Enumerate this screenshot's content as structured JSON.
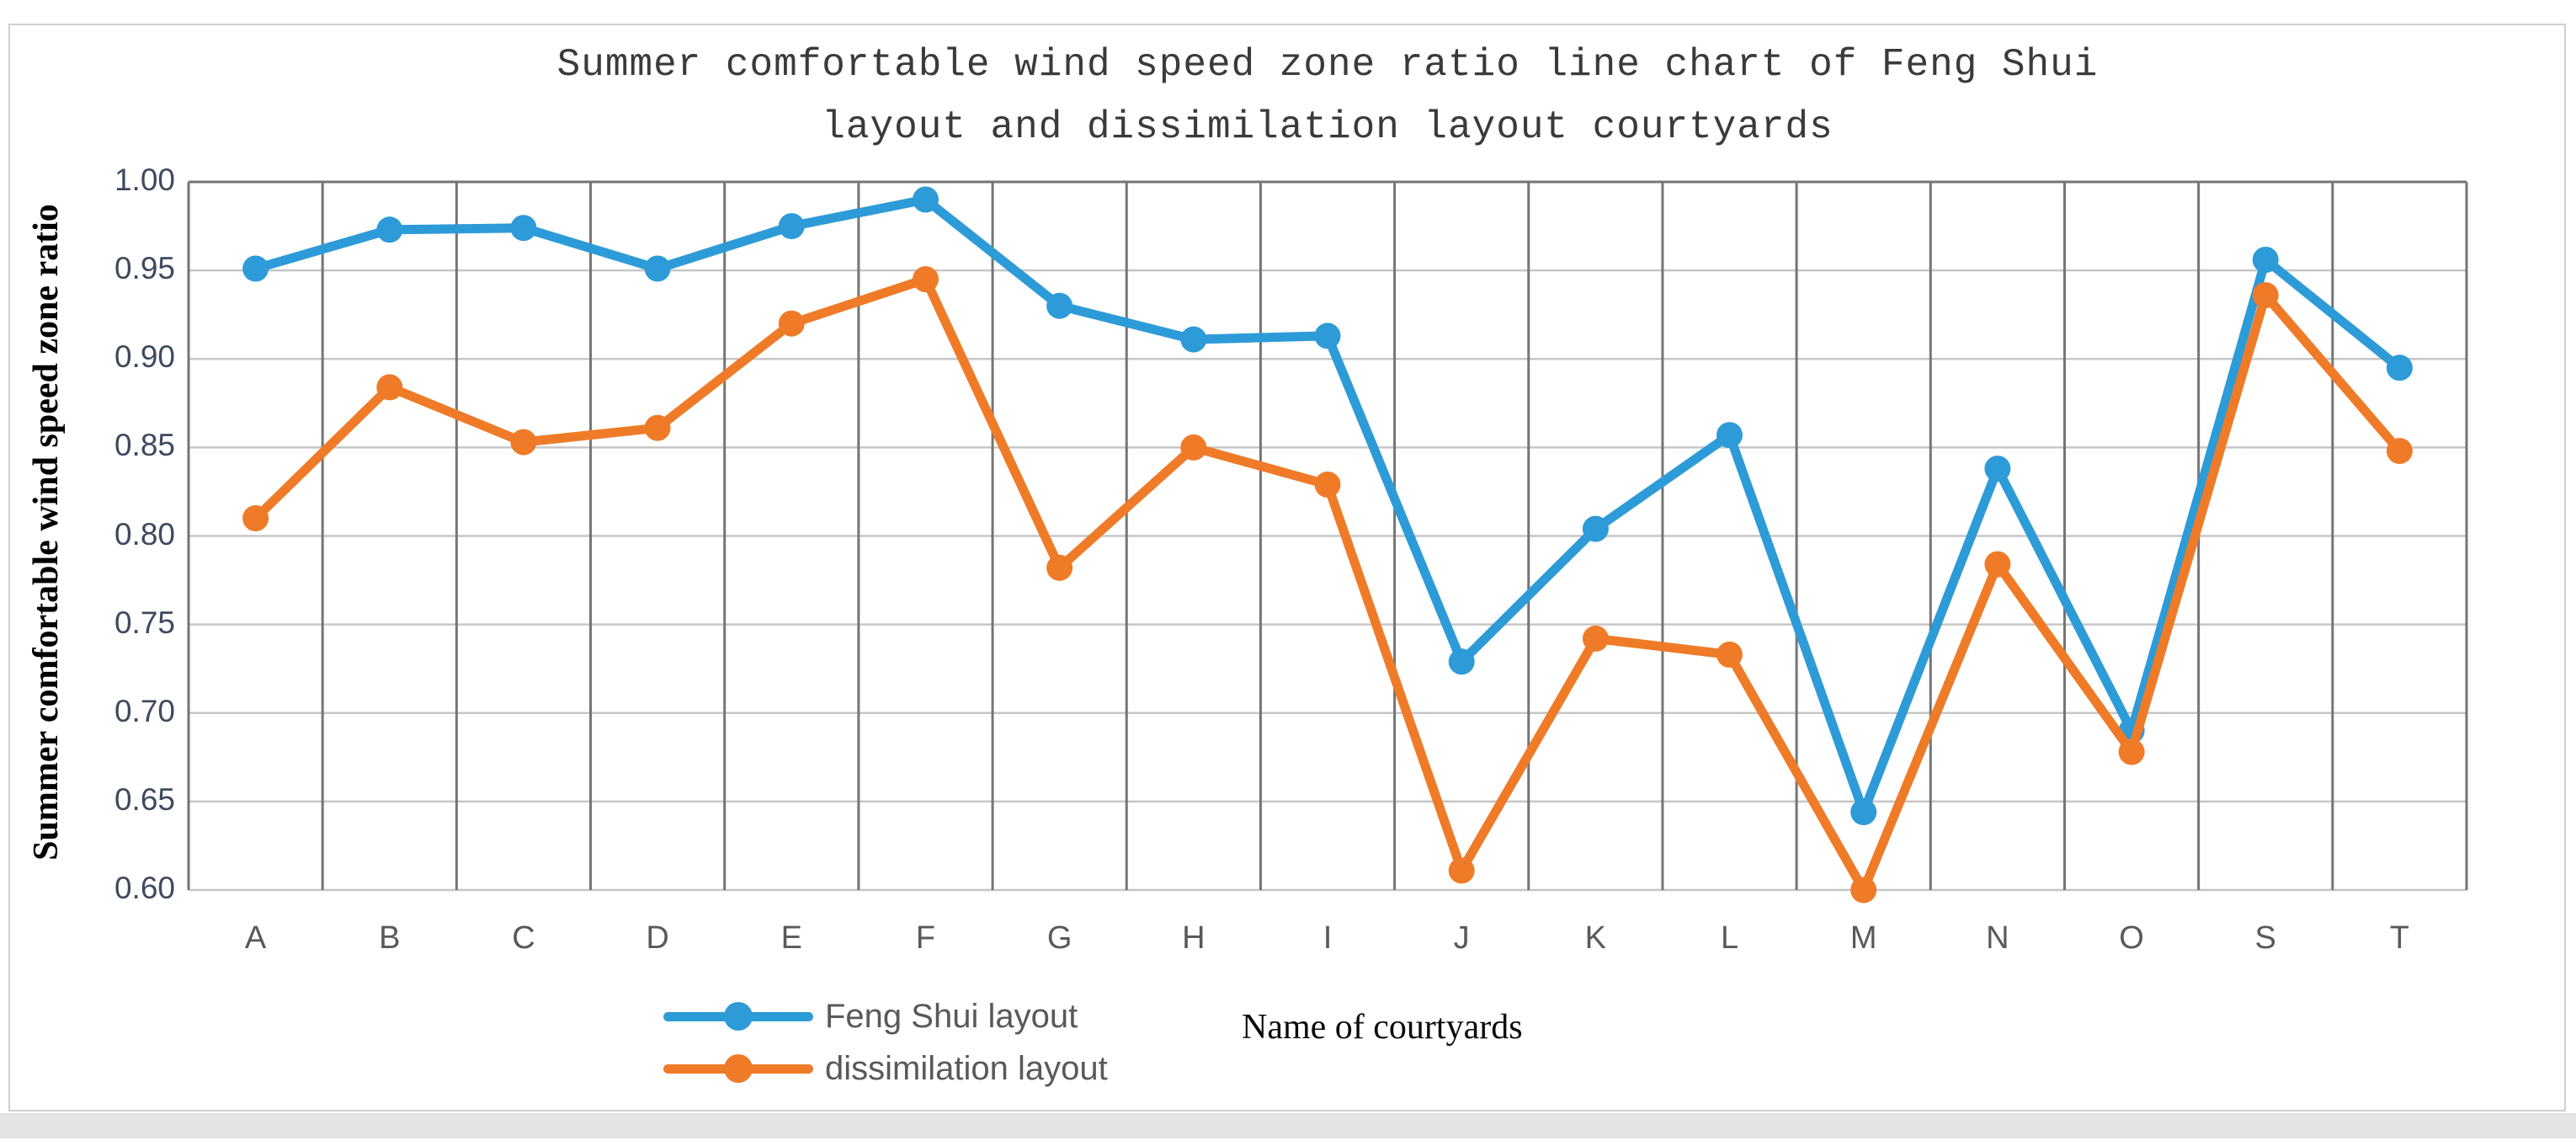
{
  "figure": {
    "title_line1": "Summer comfortable wind speed zone ratio line chart of Feng Shui",
    "title_line2": "layout and dissimilation layout courtyards",
    "y_axis_title": "Summer comfortable wind speed zone ratio",
    "x_axis_title": "Name of courtyards"
  },
  "colors": {
    "feng_shui_blue": "#2D9BD7",
    "dissimilation_orange": "#EF7B28",
    "vertical_gridline": "#757575",
    "horizontal_gridline": "#c6c6c6",
    "frame_border": "#cfcfd1",
    "bottom_strip": "#e3e3e5"
  },
  "chart_data": {
    "type": "line",
    "title": "Summer comfortable wind speed zone ratio line chart of Feng Shui layout and dissimilation layout courtyards",
    "xlabel": "Name of courtyards",
    "ylabel": "Summer comfortable wind speed zone ratio",
    "categories": [
      "A",
      "B",
      "C",
      "D",
      "E",
      "F",
      "G",
      "H",
      "I",
      "J",
      "K",
      "L",
      "M",
      "N",
      "O",
      "S",
      "T"
    ],
    "series": [
      {
        "name": "Feng Shui layout",
        "color": "#2D9BD7",
        "values": [
          0.951,
          0.973,
          0.974,
          0.951,
          0.975,
          0.99,
          0.93,
          0.911,
          0.913,
          0.729,
          0.804,
          0.857,
          0.644,
          0.838,
          0.69,
          0.956,
          0.895
        ]
      },
      {
        "name": "dissimilation layout",
        "color": "#EF7B28",
        "values": [
          0.81,
          0.884,
          0.853,
          0.861,
          0.92,
          0.945,
          0.782,
          0.85,
          0.829,
          0.611,
          0.742,
          0.733,
          0.6,
          0.784,
          0.678,
          0.936,
          0.848
        ]
      }
    ],
    "ylim": [
      0.6,
      1.0
    ],
    "ytick_step": 0.05,
    "ytick_labels": [
      "1.00",
      "0.95",
      "0.90",
      "0.85",
      "0.80",
      "0.75",
      "0.70",
      "0.65",
      "0.60"
    ],
    "grid": {
      "vertical": true,
      "horizontal": true
    },
    "legend_position": "bottom-left",
    "marker": "circle"
  }
}
